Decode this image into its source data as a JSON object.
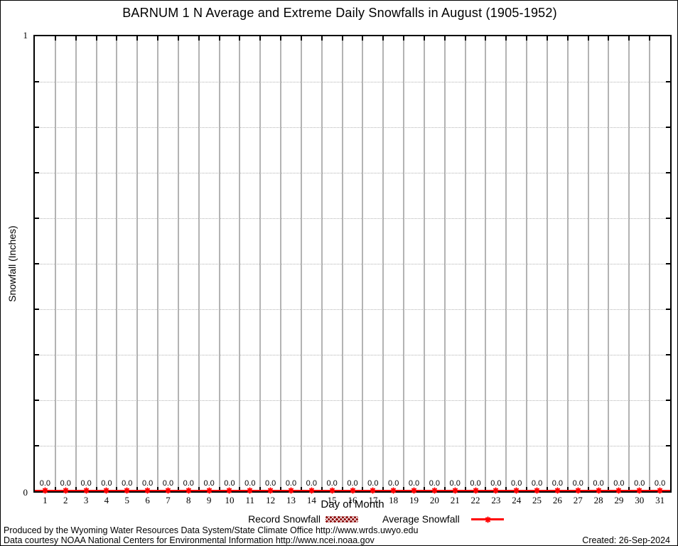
{
  "chart_data": {
    "type": "line",
    "title": "BARNUM 1 N Average and Extreme Daily Snowfalls in August (1905-1952)",
    "xlabel": "Day of Month",
    "ylabel": "Snowfall (Inches)",
    "x": [
      1,
      2,
      3,
      4,
      5,
      6,
      7,
      8,
      9,
      10,
      11,
      12,
      13,
      14,
      15,
      16,
      17,
      18,
      19,
      20,
      21,
      22,
      23,
      24,
      25,
      26,
      27,
      28,
      29,
      30,
      31
    ],
    "series": [
      {
        "name": "Record Snowfall",
        "style": "hatched-bar",
        "color": "#8b0000",
        "values": [
          0,
          0,
          0,
          0,
          0,
          0,
          0,
          0,
          0,
          0,
          0,
          0,
          0,
          0,
          0,
          0,
          0,
          0,
          0,
          0,
          0,
          0,
          0,
          0,
          0,
          0,
          0,
          0,
          0,
          0,
          0
        ]
      },
      {
        "name": "Average Snowfall",
        "style": "line-with-star-marker",
        "color": "#ff0000",
        "values": [
          0,
          0,
          0,
          0,
          0,
          0,
          0,
          0,
          0,
          0,
          0,
          0,
          0,
          0,
          0,
          0,
          0,
          0,
          0,
          0,
          0,
          0,
          0,
          0,
          0,
          0,
          0,
          0,
          0,
          0,
          0
        ]
      }
    ],
    "point_labels": [
      "0.0",
      "0.0",
      "0.0",
      "0.0",
      "0.0",
      "0.0",
      "0.0",
      "0.0",
      "0.0",
      "0.0",
      "0.0",
      "0.0",
      "0.0",
      "0.0",
      "0.0",
      "0.0",
      "0.0",
      "0.0",
      "0.0",
      "0.0",
      "0.0",
      "0.0",
      "0.0",
      "0.0",
      "0.0",
      "0.0",
      "0.0",
      "0.0",
      "0.0",
      "0.0",
      "0.0"
    ],
    "ylim": [
      0,
      1
    ],
    "ytick_step": 0.1,
    "ytick_labels": [
      "0",
      "1"
    ],
    "grid": {
      "vertical": "solid gray at day boundaries",
      "horizontal": "dotted gray every 0.1"
    },
    "legend_position": "bottom"
  },
  "colors": {
    "average_series": "#ff0000",
    "record_series": "#8b0000",
    "grid": "#b3b3b3",
    "axis": "#000000",
    "background": "#ffffff"
  },
  "footer": {
    "line1": "Produced by the Wyoming Water Resources Data System/State Climate Office http://www.wrds.uwyo.edu",
    "line2": "Data courtesy NOAA National Centers for Environmental Information http://www.ncei.noaa.gov",
    "created": "Created: 26-Sep-2024"
  }
}
